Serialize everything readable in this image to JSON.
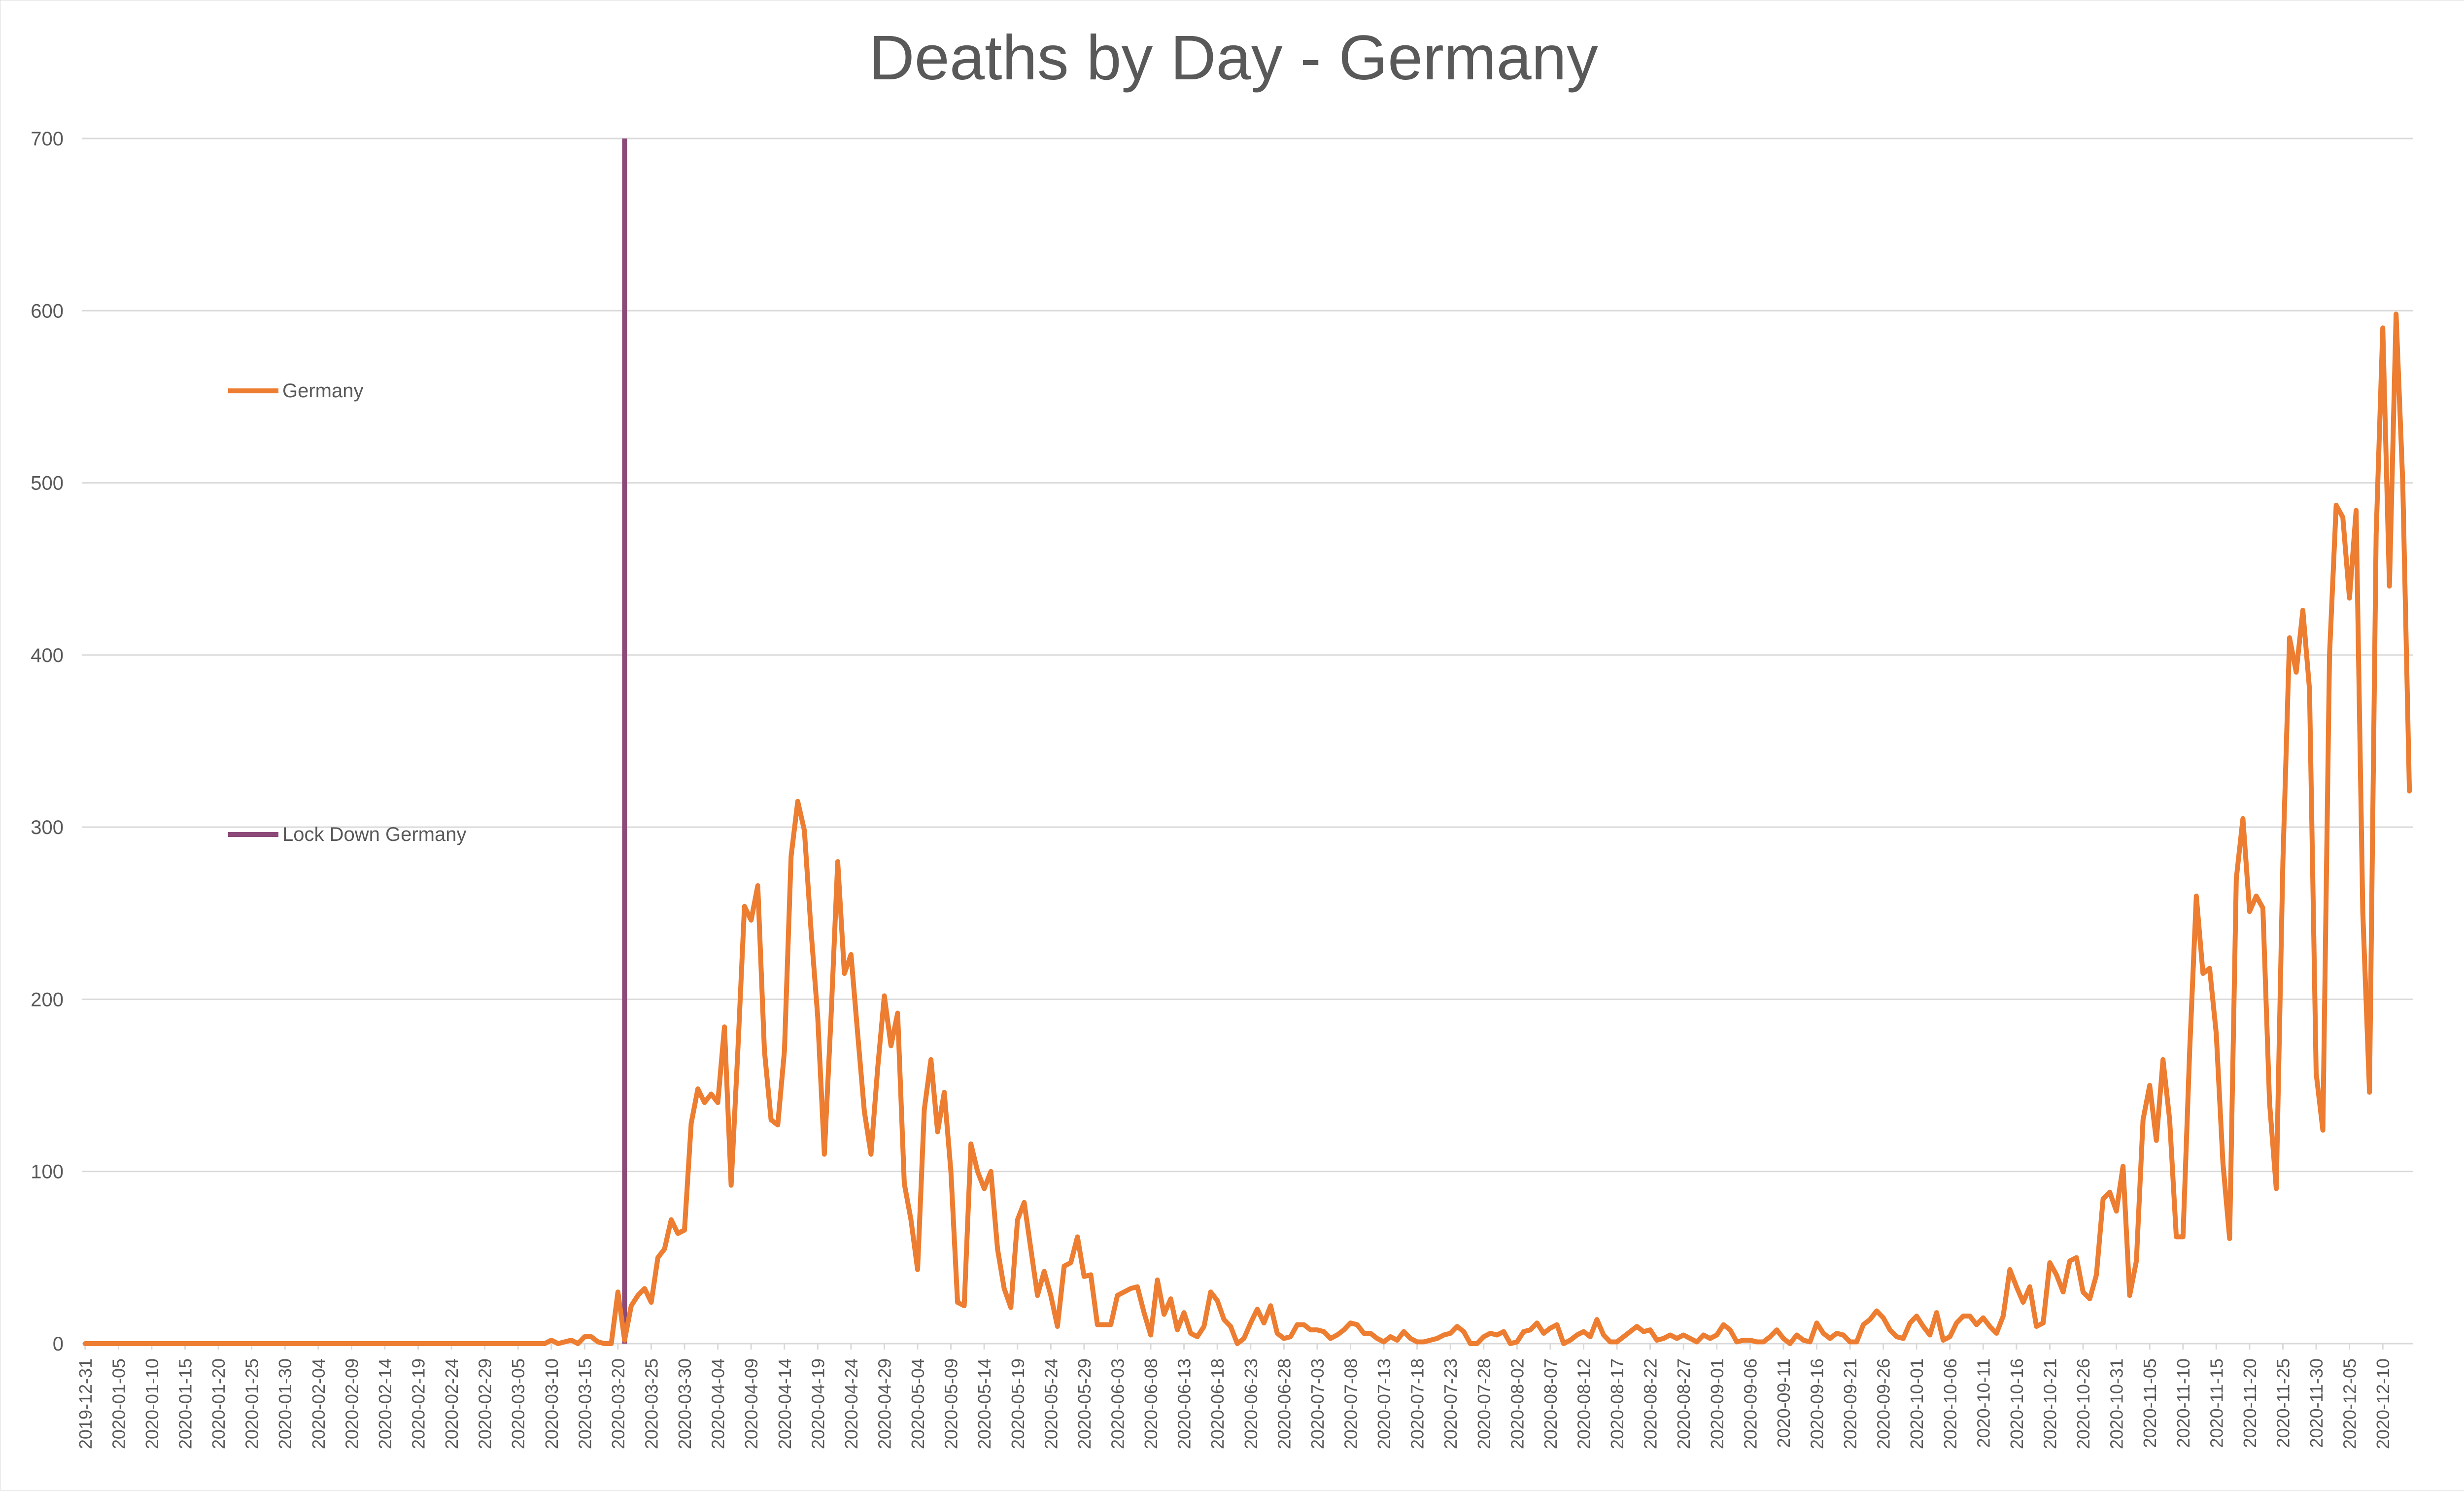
{
  "chart_data": {
    "type": "line",
    "title": "Deaths by Day - Germany",
    "xlabel": "",
    "ylabel": "",
    "ylim": [
      0,
      700
    ],
    "yticks": [
      0,
      100,
      200,
      300,
      400,
      500,
      600,
      700
    ],
    "grid": true,
    "legend_position": "left",
    "colors": {
      "series": "#ed7d31",
      "lockdown": "#8b4a78",
      "grid": "#d9d9d9",
      "text": "#595959"
    },
    "start_date": "2019-12-31",
    "tick_step_days": 5,
    "tick_labels": [
      "2019-12-31",
      "2020-01-05",
      "2020-01-10",
      "2020-01-15",
      "2020-01-20",
      "2020-01-25",
      "2020-01-30",
      "2020-02-04",
      "2020-02-09",
      "2020-02-14",
      "2020-02-19",
      "2020-02-24",
      "2020-02-29",
      "2020-03-05",
      "2020-03-10",
      "2020-03-15",
      "2020-03-20",
      "2020-03-25",
      "2020-03-30",
      "2020-04-04",
      "2020-04-09",
      "2020-04-14",
      "2020-04-19",
      "2020-04-24",
      "2020-04-29",
      "2020-05-04",
      "2020-05-09",
      "2020-05-14",
      "2020-05-19",
      "2020-05-24",
      "2020-05-29",
      "2020-06-03",
      "2020-06-08",
      "2020-06-13",
      "2020-06-18",
      "2020-06-23",
      "2020-06-28",
      "2020-07-03",
      "2020-07-08",
      "2020-07-13",
      "2020-07-18",
      "2020-07-23",
      "2020-07-28",
      "2020-08-02",
      "2020-08-07",
      "2020-08-12",
      "2020-08-17",
      "2020-08-22",
      "2020-08-27",
      "2020-09-01",
      "2020-09-06",
      "2020-09-11",
      "2020-09-16",
      "2020-09-21",
      "2020-09-26",
      "2020-10-01",
      "2020-10-06",
      "2020-10-11",
      "2020-10-16",
      "2020-10-21",
      "2020-10-26",
      "2020-10-31",
      "2020-11-05",
      "2020-11-10",
      "2020-11-15",
      "2020-11-20",
      "2020-11-25",
      "2020-11-30",
      "2020-12-05",
      "2020-12-10"
    ],
    "series": [
      {
        "name": "Germany",
        "values": [
          0,
          0,
          0,
          0,
          0,
          0,
          0,
          0,
          0,
          0,
          0,
          0,
          0,
          0,
          0,
          0,
          0,
          0,
          0,
          0,
          0,
          0,
          0,
          0,
          0,
          0,
          0,
          0,
          0,
          0,
          0,
          0,
          0,
          0,
          0,
          0,
          0,
          0,
          0,
          0,
          0,
          0,
          0,
          0,
          0,
          0,
          0,
          0,
          0,
          0,
          0,
          0,
          0,
          0,
          0,
          0,
          0,
          0,
          0,
          0,
          0,
          0,
          0,
          0,
          0,
          0,
          0,
          0,
          0,
          0,
          2,
          0,
          1,
          2,
          0,
          4,
          4,
          1,
          0,
          0,
          30,
          2,
          22,
          28,
          32,
          24,
          50,
          55,
          72,
          64,
          66,
          128,
          148,
          140,
          145,
          140,
          184,
          92,
          170,
          254,
          246,
          266,
          170,
          130,
          127,
          170,
          283,
          315,
          298,
          240,
          190,
          110,
          190,
          280,
          215,
          226,
          180,
          135,
          110,
          160,
          202,
          173,
          192,
          93,
          72,
          43,
          136,
          165,
          123,
          146,
          100,
          24,
          22,
          116,
          100,
          90,
          100,
          55,
          32,
          21,
          72,
          82,
          55,
          28,
          42,
          28,
          10,
          45,
          47,
          62,
          39,
          40,
          11,
          11,
          11,
          28,
          30,
          32,
          33,
          18,
          5,
          37,
          17,
          26,
          8,
          18,
          6,
          4,
          10,
          30,
          25,
          14,
          10,
          0,
          3,
          12,
          20,
          12,
          22,
          6,
          3,
          4,
          11,
          11,
          8,
          8,
          7,
          3,
          5,
          8,
          12,
          11,
          6,
          6,
          3,
          1,
          4,
          2,
          7,
          3,
          1,
          1,
          2,
          3,
          5,
          6,
          10,
          7,
          0,
          0,
          4,
          6,
          5,
          7,
          0,
          1,
          7,
          8,
          12,
          6,
          9,
          11,
          0,
          2,
          5,
          7,
          4,
          14,
          5,
          1,
          1,
          4,
          7,
          10,
          7,
          8,
          2,
          3,
          5,
          3,
          5,
          3,
          1,
          5,
          3,
          5,
          11,
          8,
          1,
          2,
          2,
          1,
          1,
          4,
          8,
          3,
          0,
          5,
          2,
          1,
          12,
          6,
          3,
          6,
          5,
          1,
          1,
          11,
          14,
          19,
          15,
          8,
          4,
          3,
          12,
          16,
          10,
          5,
          18,
          2,
          4,
          12,
          16,
          16,
          11,
          15,
          10,
          6,
          16,
          43,
          33,
          24,
          33,
          10,
          12,
          47,
          40,
          30,
          48,
          50,
          30,
          26,
          40,
          84,
          88,
          77,
          103,
          28,
          48,
          130,
          150,
          118,
          165,
          130,
          62,
          62,
          170,
          260,
          215,
          218,
          180,
          105,
          61,
          270,
          305,
          251,
          260,
          253,
          140,
          90,
          280,
          410,
          390,
          426,
          380,
          157,
          124,
          400,
          487,
          480,
          433,
          484,
          251,
          146,
          470,
          590,
          440,
          598,
          500,
          321
        ]
      }
    ],
    "lockdown": {
      "name": "Lock Down Germany",
      "date": "2020-03-21"
    }
  }
}
